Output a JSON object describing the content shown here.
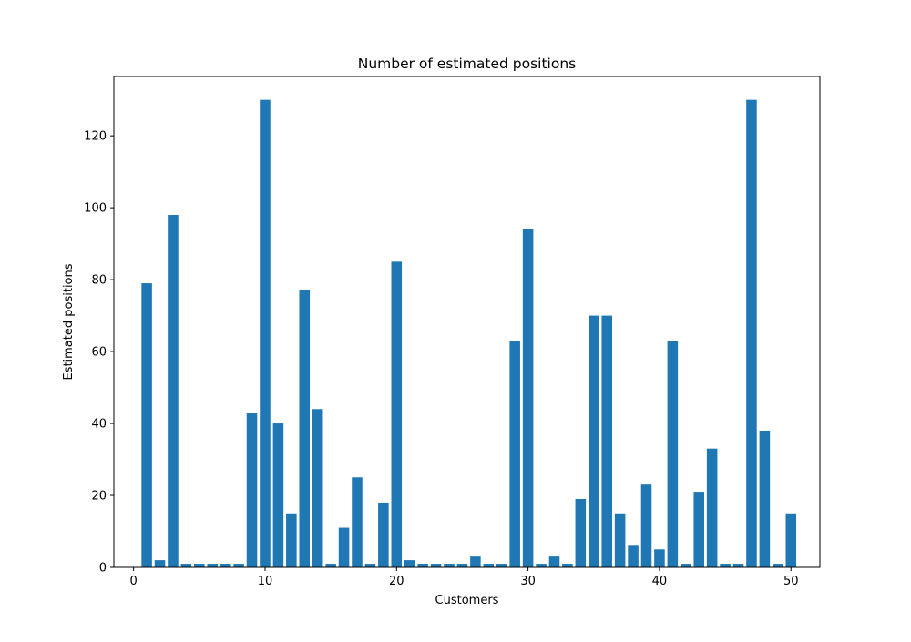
{
  "chart_data": {
    "type": "bar",
    "title": "Number of estimated positions",
    "xlabel": "Customers",
    "ylabel": "Estimated positions",
    "xlim": [
      -1.5,
      52.2
    ],
    "ylim": [
      0,
      136.5
    ],
    "xticks": [
      0,
      10,
      20,
      30,
      40,
      50
    ],
    "yticks": [
      0,
      20,
      40,
      60,
      80,
      100,
      120
    ],
    "grid": false,
    "bar_color": "#1f77b4",
    "x": [
      1,
      2,
      3,
      4,
      5,
      6,
      7,
      8,
      9,
      10,
      11,
      12,
      13,
      14,
      15,
      16,
      17,
      18,
      19,
      20,
      21,
      22,
      23,
      24,
      25,
      26,
      27,
      28,
      29,
      30,
      31,
      32,
      33,
      34,
      35,
      36,
      37,
      38,
      39,
      40,
      41,
      42,
      43,
      44,
      45,
      46,
      47,
      48,
      49,
      50
    ],
    "values": [
      79,
      2,
      98,
      1,
      1,
      1,
      1,
      1,
      43,
      130,
      40,
      15,
      77,
      44,
      1,
      11,
      25,
      1,
      18,
      85,
      2,
      1,
      1,
      1,
      1,
      3,
      1,
      1,
      63,
      94,
      1,
      3,
      1,
      19,
      70,
      70,
      15,
      6,
      23,
      5,
      63,
      1,
      21,
      33,
      1,
      1,
      130,
      38,
      1,
      15
    ]
  }
}
